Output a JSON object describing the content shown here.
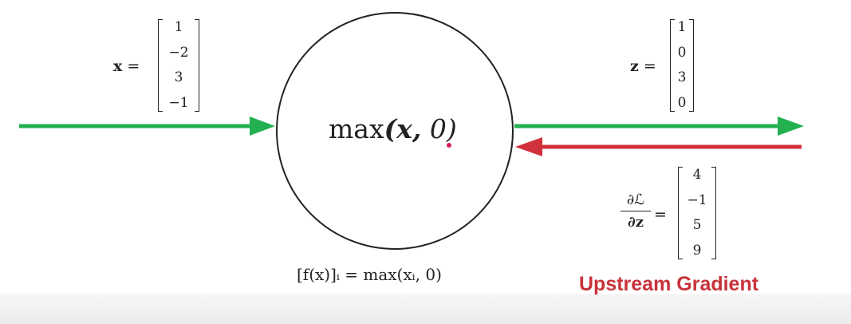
{
  "colors": {
    "forward": "#22b050",
    "backward": "#d0313a",
    "upstream_text": "#c8323a",
    "cursor_dot": "#d6205c"
  },
  "input": {
    "symbol": "x",
    "equals": "=",
    "values": [
      "1",
      "−2",
      "3",
      "−1"
    ]
  },
  "node": {
    "func": "max",
    "open": "(",
    "arg": "x",
    "comma": ",",
    "zero": "0",
    "close": ")"
  },
  "formula": "[f(x)]ᵢ = max(xᵢ, 0)",
  "output": {
    "symbol": "z",
    "equals": "=",
    "values": [
      "1",
      "0",
      "3",
      "0"
    ]
  },
  "gradient": {
    "numerator": "∂ℒ",
    "denominator": "∂z",
    "equals": "=",
    "values": [
      "4",
      "−1",
      "5",
      "9"
    ]
  },
  "upstream_label": "Upstream Gradient"
}
